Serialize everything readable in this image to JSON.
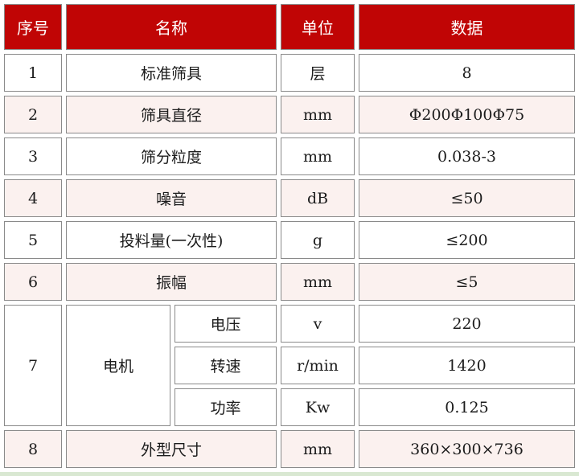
{
  "page": {
    "background_color": "#d9e8d2"
  },
  "table": {
    "colors": {
      "header_bg": "#c00505",
      "header_text": "#ffffff",
      "row_bg": "#ffffff",
      "row_alt_bg": "#fbf1ef",
      "border": "#8a8a8a"
    },
    "header": {
      "seq": "序号",
      "name": "名称",
      "unit": "单位",
      "data": "数据"
    },
    "rows": [
      {
        "seq": "1",
        "name": "标准筛具",
        "unit": "层",
        "data": "8"
      },
      {
        "seq": "2",
        "name": "筛具直径",
        "unit": "mm",
        "data": "Φ200Φ100Φ75"
      },
      {
        "seq": "3",
        "name": "筛分粒度",
        "unit": "mm",
        "data": "0.038-3"
      },
      {
        "seq": "4",
        "name": "噪音",
        "unit": "dB",
        "data": "≤50"
      },
      {
        "seq": "5",
        "name": "投料量(一次性)",
        "unit": "g",
        "data": "≤200"
      },
      {
        "seq": "6",
        "name": "振幅",
        "unit": "mm",
        "data": "≤5"
      },
      {
        "seq": "7",
        "name": "电机",
        "subrows": [
          {
            "subname": "电压",
            "unit": "v",
            "data": "220"
          },
          {
            "subname": "转速",
            "unit": "r/min",
            "data": "1420"
          },
          {
            "subname": "功率",
            "unit": "Kw",
            "data": "0.125"
          }
        ]
      },
      {
        "seq": "8",
        "name": "外型尺寸",
        "unit": "mm",
        "data": "360×300×736"
      }
    ]
  }
}
